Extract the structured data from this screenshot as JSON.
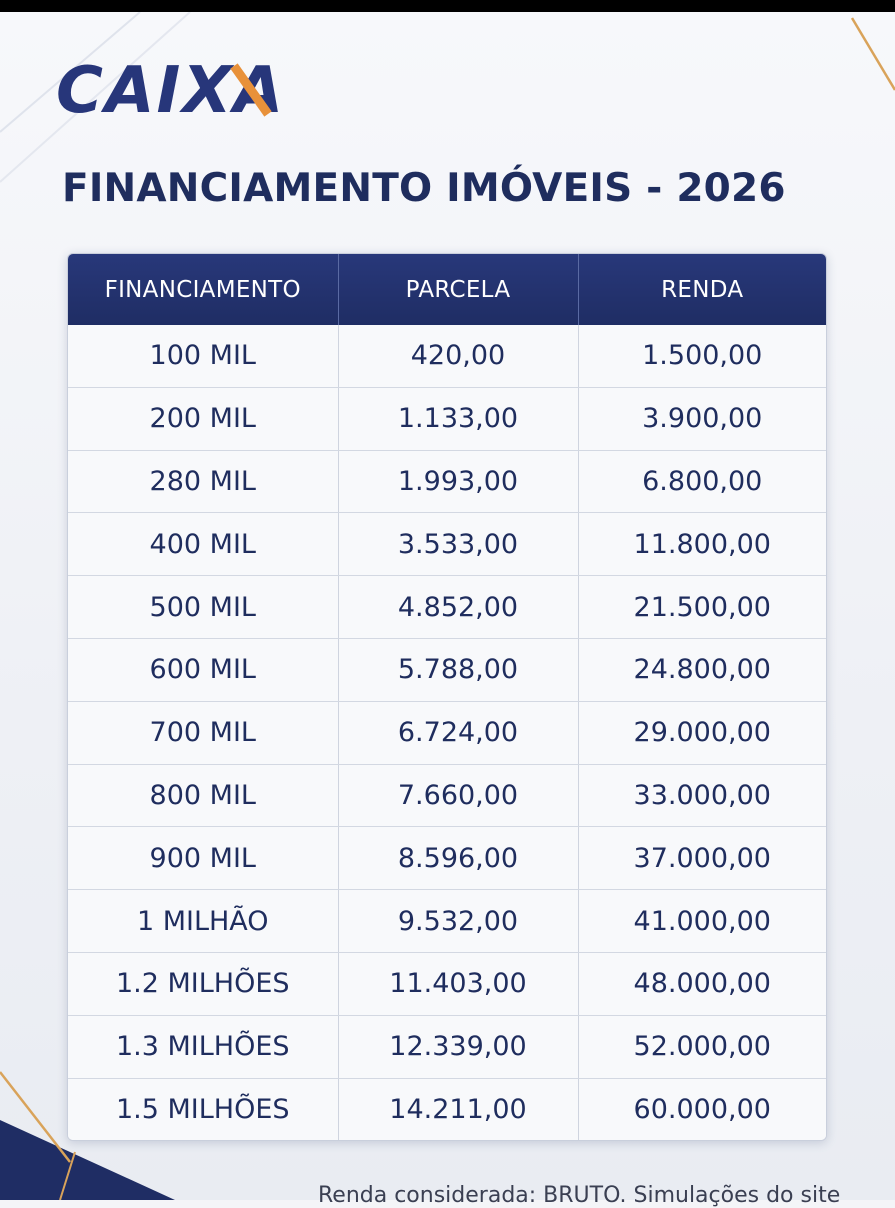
{
  "brand": {
    "logo_text": "CAIXA",
    "primary_color": "#1f2d64",
    "accent_color": "#e8913a"
  },
  "title": "FINANCIAMENTO IMÓVEIS - 2026",
  "table": {
    "headers": [
      "FINANCIAMENTO",
      "PARCELA",
      "RENDA"
    ],
    "rows": [
      [
        "100 MIL",
        "420,00",
        "1.500,00"
      ],
      [
        "200 MIL",
        "1.133,00",
        "3.900,00"
      ],
      [
        "280 MIL",
        "1.993,00",
        "6.800,00"
      ],
      [
        "400 MIL",
        "3.533,00",
        "11.800,00"
      ],
      [
        "500 MIL",
        "4.852,00",
        "21.500,00"
      ],
      [
        "600 MIL",
        "5.788,00",
        "24.800,00"
      ],
      [
        "700 MIL",
        "6.724,00",
        "29.000,00"
      ],
      [
        "800 MIL",
        "7.660,00",
        "33.000,00"
      ],
      [
        "900 MIL",
        "8.596,00",
        "37.000,00"
      ],
      [
        "1 MILHÃO",
        "9.532,00",
        "41.000,00"
      ],
      [
        "1.2 MILHÕES",
        "11.403,00",
        "48.000,00"
      ],
      [
        "1.3 MILHÕES",
        "12.339,00",
        "52.000,00"
      ],
      [
        "1.5 MILHÕES",
        "14.211,00",
        "60.000,00"
      ]
    ]
  },
  "footer_note": "Renda considerada: BRUTO. Simulações do site"
}
